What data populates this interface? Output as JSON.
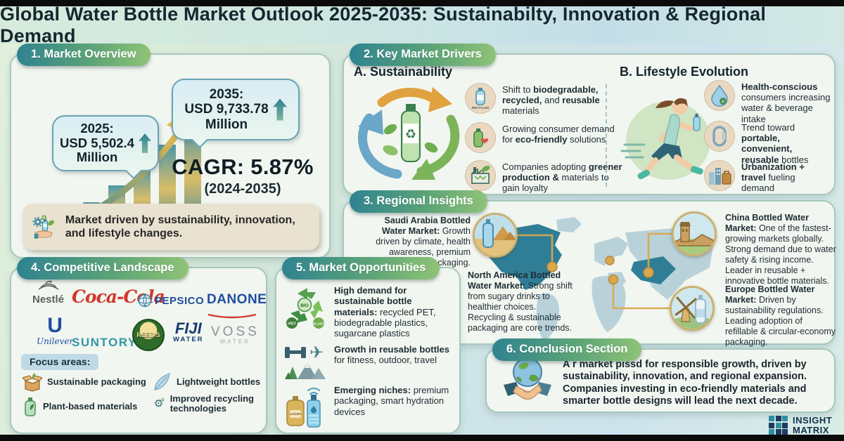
{
  "title": "Global Water Bottle Market Outlook 2025-2035: Sustainabilty, Innovation & Regional Demand",
  "sections": {
    "overview": {
      "header": "1. Market Overview",
      "bubble_2025": {
        "line1": "2025:",
        "line2": "USD 5,502.4",
        "line3": "Million"
      },
      "bubble_2035": {
        "line1": "2035:",
        "line2": "USD 9,733.78",
        "line3": "Million"
      },
      "cagr": "CAGR: 5.87%",
      "cagr_period": "(2024-2035)",
      "driver_note": "Market driven by sustainability, innovation, and lifestyle changes."
    },
    "drivers": {
      "header": "2. Key Market Drivers",
      "sub_a": "A. Sustainability",
      "a_items": [
        {
          "segs": [
            {
              "t": "Shift to "
            },
            {
              "t": "biodegradable, recycled,",
              "b": true
            },
            {
              "t": " and "
            },
            {
              "t": "reusable",
              "b": true
            },
            {
              "t": " materials"
            }
          ]
        },
        {
          "segs": [
            {
              "t": "Growing consumer demand for "
            },
            {
              "t": "eco-friendly",
              "b": true
            },
            {
              "t": " solutions"
            }
          ]
        },
        {
          "segs": [
            {
              "t": "Companies adopting "
            },
            {
              "t": "greener production &",
              "b": true
            },
            {
              "t": " materials to gain loyalty"
            }
          ]
        }
      ],
      "sub_b": "B. Lifestyle Evolution",
      "b_items": [
        {
          "segs": [
            {
              "t": "Health-conscious",
              "b": true
            },
            {
              "t": " consumers increasing water & beverage intake"
            }
          ]
        },
        {
          "segs": [
            {
              "t": "Trend toward "
            },
            {
              "t": "portable, convenient, reusable",
              "b": true
            },
            {
              "t": " bottles"
            }
          ]
        },
        {
          "segs": [
            {
              "t": "Urbanization + travel",
              "b": true
            },
            {
              "t": " fueling demand"
            }
          ]
        }
      ]
    },
    "regional": {
      "header": "3. Regional Insights",
      "saudi": {
        "segs": [
          {
            "t": "Saudi Arabia Bottled Water Market:",
            "b": true
          },
          {
            "t": " Growth driven by climate, health awareness, premium water, eco-packaging."
          }
        ]
      },
      "north_america": {
        "segs": [
          {
            "t": "North America Bottled Water Market:",
            "b": true
          },
          {
            "t": " Strong shift from sugary drinks to healthier choices. Recycling & sustainable packaging are core trends."
          }
        ]
      },
      "china": {
        "segs": [
          {
            "t": "China Bottled Water Market:",
            "b": true
          },
          {
            "t": " One of the fastest-growing markets globally. Strong demand due to water safety & rising income. Leader in reusable + innovative bottle materials."
          }
        ]
      },
      "europe": {
        "segs": [
          {
            "t": "Europe Bottled Water Market:",
            "b": true
          },
          {
            "t": " Driven by sustainability regulations. Leading adoption of refillable & circular-economy packaging."
          }
        ]
      }
    },
    "competitive": {
      "header": "4. Competitive Landscape",
      "logos": {
        "nestle": "Nestlé",
        "cocacola": "Coca-Cola",
        "pepsico": "PEPSICO",
        "danone": "DANONE",
        "unilever_letter": "U",
        "unilever": "Unilever",
        "suntory": "SUNTORY",
        "reeds": "REED'S",
        "fiji_top": "FIJI",
        "fiji_bottom": "WATER",
        "voss_top": "VOSS",
        "voss_bottom": "WATER"
      },
      "focus_label": "Focus areas:",
      "focus_items": [
        {
          "label": "Sustainable packaging"
        },
        {
          "label": "Lightweight bottles"
        },
        {
          "label": "Plant-based materials"
        },
        {
          "label": "Improved recycling technologies"
        }
      ]
    },
    "opportunities": {
      "header": "5. Market Opportunities",
      "items": [
        {
          "segs": [
            {
              "t": "High demand for sustainable bottle materials:",
              "b": true
            },
            {
              "t": " recycled PET, biodegradable plastics, sugarcane plastics"
            }
          ]
        },
        {
          "segs": [
            {
              "t": "Growth in reusable bottles",
              "b": true
            },
            {
              "t": " for fitness, outdoor, travel"
            }
          ]
        },
        {
          "segs": [
            {
              "t": "Emerging niches:",
              "b": true
            },
            {
              "t": " premium packaging, smart hydration devices"
            }
          ]
        }
      ]
    },
    "conclusion": {
      "header": "6. Conclusion Section",
      "text": "A r market pissd for responsible growth, driven by sustainability, innovation, and regional expansion. Companies investing in eco-friendly materials and smarter bottle designs will lead the next decade."
    }
  },
  "icon_labels": {
    "recycled": "RECYCLED",
    "bio": "BIO",
    "rpet": "rPET",
    "plant": "PLANT",
    "luxury": "LUXURY"
  },
  "brand": {
    "line1": "INSIGHT",
    "line2": "MATRIX"
  },
  "colors": {
    "accent_teal": "#2f8391",
    "accent_green": "#8fc377",
    "gold": "#d9a84e",
    "map_dark": "#2f7e96",
    "map_light": "#b9d2da"
  }
}
